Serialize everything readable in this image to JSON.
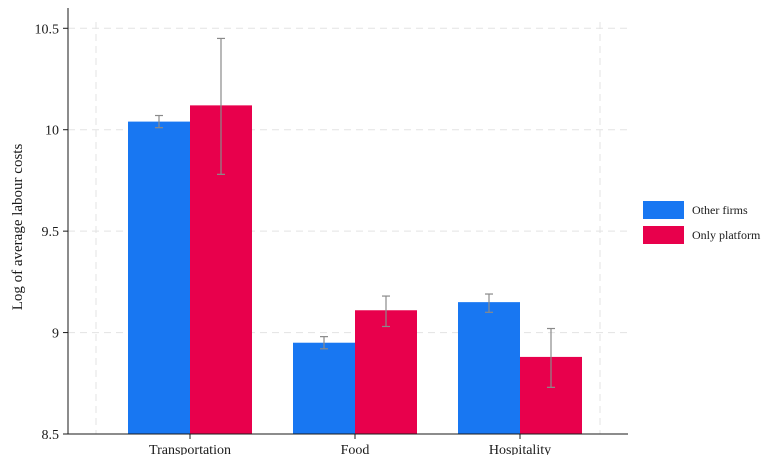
{
  "chart_data": {
    "type": "bar",
    "categories": [
      "Transportation",
      "Food",
      "Hospitality"
    ],
    "ylabel": "Log of average labour costs",
    "xlabel": "",
    "ylim": [
      8.5,
      10.6
    ],
    "yticks": [
      8.5,
      9,
      9.5,
      10,
      10.5
    ],
    "ytick_labels": [
      "8.5",
      "9",
      "9.5",
      "10",
      "10.5"
    ],
    "grid": true,
    "legend_position": "right",
    "series": [
      {
        "name": "Other firms",
        "color": "#1877f2",
        "values": [
          10.04,
          8.95,
          9.15
        ],
        "error_low": [
          10.01,
          8.92,
          9.1
        ],
        "error_high": [
          10.07,
          8.98,
          9.19
        ]
      },
      {
        "name": "Only platform",
        "color": "#e8004c",
        "values": [
          10.12,
          9.11,
          8.88
        ],
        "error_low": [
          9.78,
          9.03,
          8.73
        ],
        "error_high": [
          10.45,
          9.18,
          9.02
        ]
      }
    ]
  }
}
